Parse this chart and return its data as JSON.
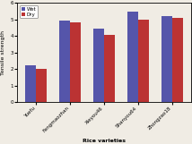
{
  "categories": [
    "Yuefu",
    "Fengmaozhan",
    "Xieyou46",
    "Shanyou64",
    "Zhongzao18"
  ],
  "wet_values": [
    2.2,
    4.95,
    4.45,
    5.45,
    5.2
  ],
  "dry_values": [
    2.0,
    4.8,
    4.05,
    5.0,
    5.1
  ],
  "wet_color": "#5555aa",
  "dry_color": "#bb3333",
  "ylabel": "Tensile strength",
  "xlabel": "Rice varieties",
  "ylim": [
    0,
    6
  ],
  "yticks": [
    0,
    1,
    2,
    3,
    4,
    5,
    6
  ],
  "legend_labels": [
    "Wet",
    "Dry"
  ],
  "bar_width": 0.32,
  "background_color": "#f0ece4"
}
